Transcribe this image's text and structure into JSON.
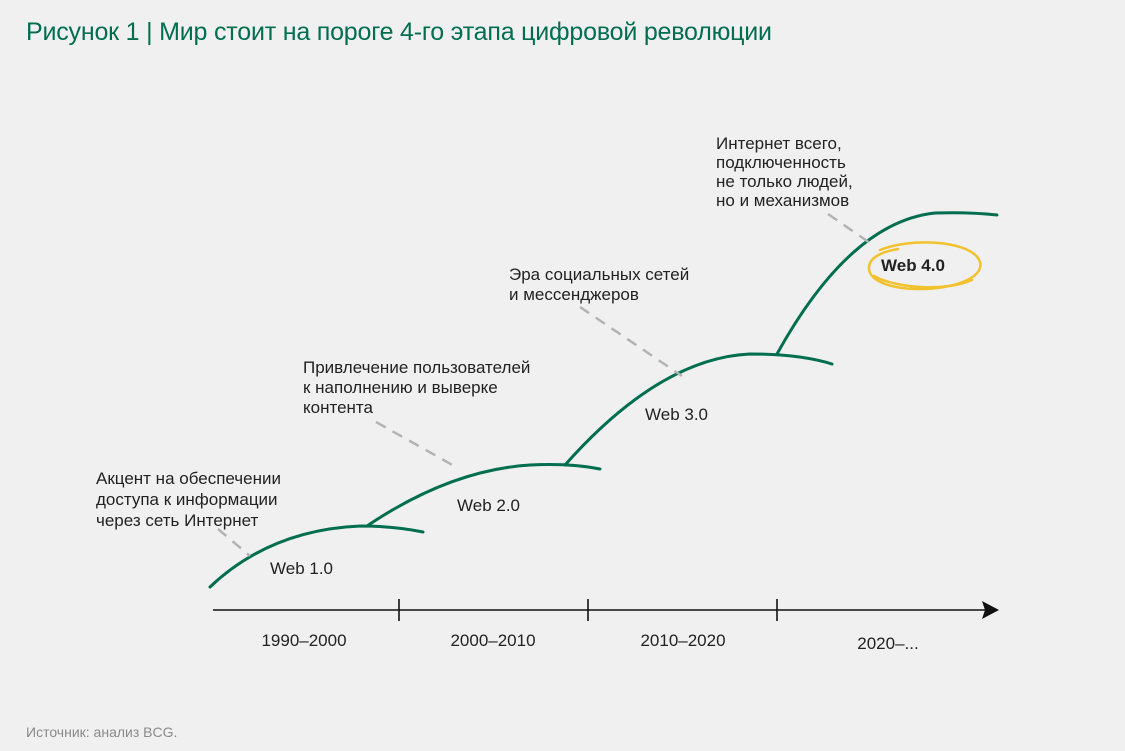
{
  "figure": {
    "title_prefix": "Рисунок 1",
    "title_separator": "|",
    "title_text": "Мир стоит на пороге 4-го этапа цифровой революции",
    "source": "Источник: анализ BCG."
  },
  "colors": {
    "accent_green": "#006e4f",
    "highlight_yellow": "#f2c12e",
    "dash_gray": "#b3b3b3",
    "axis": "#111111"
  },
  "timeline": {
    "periods": [
      "1990–2000",
      "2000–2010",
      "2010–2020",
      "2020–..."
    ]
  },
  "stages": [
    {
      "label": "Web 1.0",
      "note_lines": [
        "Акцент на обеспечении",
        "доступа к информации",
        "через сеть Интернет"
      ]
    },
    {
      "label": "Web 2.0",
      "note_lines": [
        "Привлечение пользователей",
        "к наполнению и выверке",
        "контента"
      ]
    },
    {
      "label": "Web 3.0",
      "note_lines": [
        "Эра социальных сетей",
        "и мессенджеров"
      ]
    },
    {
      "label": "Web 4.0",
      "highlighted": true,
      "note_lines": [
        "Интернет всего,",
        "подключенность",
        "не только людей,",
        "но и механизмов"
      ]
    }
  ]
}
